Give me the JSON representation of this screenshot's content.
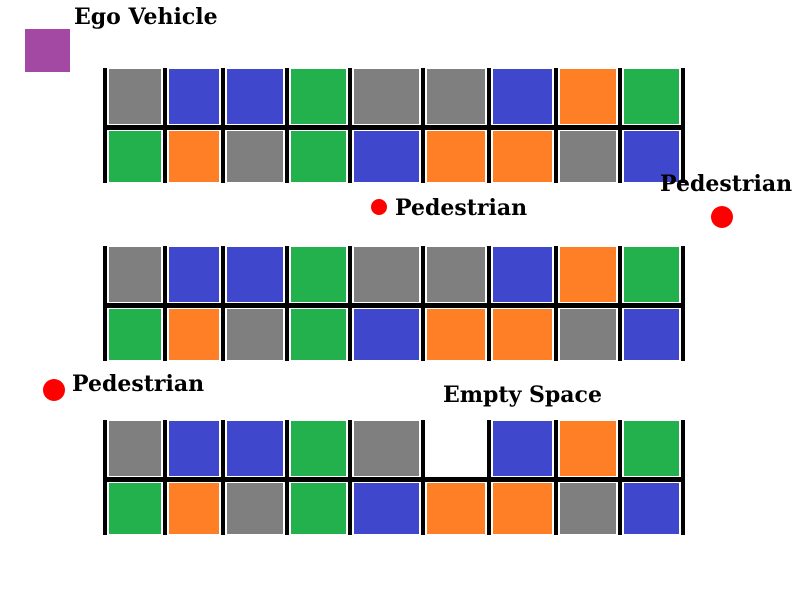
{
  "labels": {
    "ego": "Ego Vehicle",
    "pedestrian_1": "Pedestrian",
    "pedestrian_2": "Pedestrian",
    "pedestrian_3": "Pedestrian",
    "empty": "Empty Space"
  },
  "colors": {
    "gray": "#7f7f7f",
    "blue": "#3f48cc",
    "green": "#22b14c",
    "orange": "#ff7f27",
    "ego": "#a349a4",
    "pedestrian": "#ff0000",
    "line": "#000000"
  },
  "lots": [
    {
      "top_row": [
        "gray",
        "blue",
        "blue",
        "green",
        "gray",
        "gray",
        "blue",
        "orange",
        "green"
      ],
      "bottom_row": [
        "green",
        "orange",
        "gray",
        "green",
        "blue",
        "orange",
        "orange",
        "gray",
        "blue"
      ]
    },
    {
      "top_row": [
        "gray",
        "blue",
        "blue",
        "green",
        "gray",
        "gray",
        "blue",
        "orange",
        "green"
      ],
      "bottom_row": [
        "green",
        "orange",
        "gray",
        "green",
        "blue",
        "orange",
        "orange",
        "gray",
        "blue"
      ]
    },
    {
      "top_row": [
        "gray",
        "blue",
        "blue",
        "green",
        "gray",
        "empty",
        "blue",
        "orange",
        "green"
      ],
      "bottom_row": [
        "green",
        "orange",
        "gray",
        "green",
        "blue",
        "orange",
        "orange",
        "gray",
        "blue"
      ]
    }
  ]
}
